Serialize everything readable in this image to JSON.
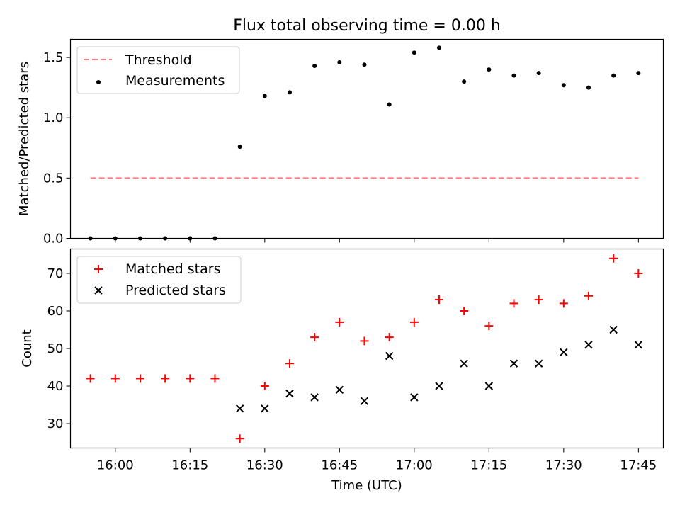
{
  "title": "Flux total observing time = 0.00 h",
  "colors": {
    "threshold": "#ff7b7b",
    "measurements": "#000000",
    "matched": "#ff0000",
    "predicted": "#000000"
  },
  "chart_data": [
    {
      "type": "scatter",
      "ylabel": "Matched/Predicted stars",
      "ylim": [
        0,
        1.65
      ],
      "xlim": [
        "15:51",
        "17:50"
      ],
      "yticks": [
        "0.0",
        "0.5",
        "1.0",
        "1.5"
      ],
      "legend": "top-left",
      "series": [
        {
          "name": "Threshold",
          "kind": "dashed-line",
          "x": [
            "15:55",
            "17:45"
          ],
          "values": [
            0.5,
            0.5
          ]
        },
        {
          "name": "Measurements",
          "kind": "dot",
          "x": [
            "15:55",
            "16:00",
            "16:05",
            "16:10",
            "16:15",
            "16:20",
            "16:25",
            "16:30",
            "16:35",
            "16:40",
            "16:45",
            "16:50",
            "16:55",
            "17:00",
            "17:05",
            "17:10",
            "17:15",
            "17:20",
            "17:25",
            "17:30",
            "17:35",
            "17:40",
            "17:45"
          ],
          "values": [
            0,
            0,
            0,
            0,
            0,
            0,
            0.76,
            1.18,
            1.21,
            1.43,
            1.46,
            1.44,
            1.11,
            1.54,
            1.58,
            1.3,
            1.4,
            1.35,
            1.37,
            1.27,
            1.25,
            1.35,
            1.37
          ]
        }
      ]
    },
    {
      "type": "scatter",
      "ylabel": "Count",
      "xlabel": "Time (UTC)",
      "ylim": [
        23.5,
        76.5
      ],
      "xlim": [
        "15:51",
        "17:50"
      ],
      "yticks": [
        "30",
        "40",
        "50",
        "60",
        "70"
      ],
      "xticks": [
        "16:00",
        "16:15",
        "16:30",
        "16:45",
        "17:00",
        "17:15",
        "17:30",
        "17:45"
      ],
      "legend": "top-left",
      "series": [
        {
          "name": "Matched stars",
          "kind": "plus",
          "x": [
            "15:55",
            "16:00",
            "16:05",
            "16:10",
            "16:15",
            "16:20",
            "16:25",
            "16:30",
            "16:35",
            "16:40",
            "16:45",
            "16:50",
            "16:55",
            "17:00",
            "17:05",
            "17:10",
            "17:15",
            "17:20",
            "17:25",
            "17:30",
            "17:35",
            "17:40",
            "17:45"
          ],
          "values": [
            42,
            42,
            42,
            42,
            42,
            42,
            26,
            40,
            46,
            53,
            57,
            52,
            53,
            57,
            63,
            60,
            56,
            62,
            63,
            62,
            64,
            74,
            70
          ]
        },
        {
          "name": "Predicted stars",
          "kind": "x",
          "x": [
            "16:25",
            "16:30",
            "16:35",
            "16:40",
            "16:45",
            "16:50",
            "16:55",
            "17:00",
            "17:05",
            "17:10",
            "17:15",
            "17:20",
            "17:25",
            "17:30",
            "17:35",
            "17:40",
            "17:45"
          ],
          "values": [
            34,
            34,
            38,
            37,
            39,
            36,
            48,
            37,
            40,
            46,
            40,
            46,
            46,
            49,
            51,
            55,
            51
          ]
        }
      ]
    }
  ]
}
